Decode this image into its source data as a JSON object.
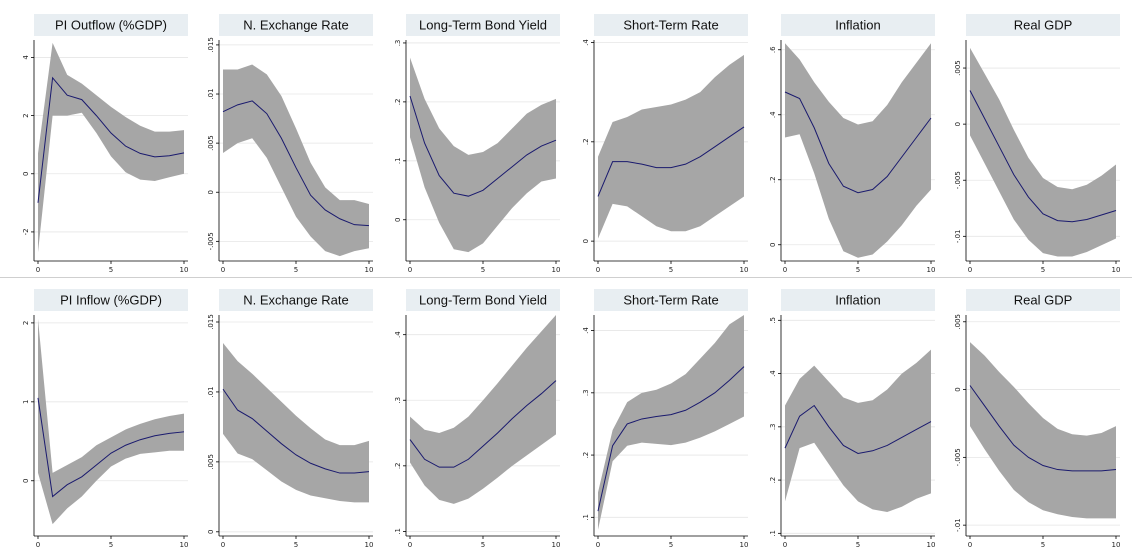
{
  "figure": {
    "colors": {
      "band": "#a6a6a6",
      "line": "#1a1a6e",
      "header": "#e8eef2",
      "grid": "#e6e6e6",
      "frame": "#000000"
    },
    "chart_data": [
      {
        "type": "area",
        "title": "PI Outflow (%GDP)",
        "xlabel": "",
        "ylabel": "",
        "x": [
          0,
          1,
          2,
          3,
          4,
          5,
          6,
          7,
          8,
          9,
          10
        ],
        "xticks": [
          0,
          5,
          10
        ],
        "yticks": [
          -2,
          0,
          2,
          4
        ],
        "yticklabels": [
          "-2",
          "0",
          "2",
          "4"
        ],
        "ylim": [
          -3,
          4.6
        ],
        "series": [
          {
            "values": [
              -1.0,
              3.3,
              2.7,
              2.55,
              2.0,
              1.4,
              0.95,
              0.7,
              0.58,
              0.62,
              0.72
            ]
          }
        ],
        "lower": [
          -2.7,
          2.0,
          2.0,
          2.1,
          1.4,
          0.6,
          0.05,
          -0.2,
          -0.25,
          -0.12,
          0.0
        ],
        "upper": [
          0.7,
          4.5,
          3.4,
          3.1,
          2.7,
          2.3,
          1.95,
          1.65,
          1.45,
          1.45,
          1.5
        ]
      },
      {
        "type": "area",
        "title": "N. Exchange Rate",
        "xlabel": "",
        "ylabel": "",
        "x": [
          0,
          1,
          2,
          3,
          4,
          5,
          6,
          7,
          8,
          9,
          10
        ],
        "xticks": [
          0,
          5,
          10
        ],
        "yticks": [
          -0.005,
          0,
          0.005,
          0.01,
          0.015
        ],
        "yticklabels": [
          "-.005",
          "0",
          ".005",
          ".01",
          ".015"
        ],
        "ylim": [
          -0.007,
          0.0155
        ],
        "series": [
          {
            "values": [
              0.0082,
              0.0089,
              0.0093,
              0.008,
              0.0055,
              0.0025,
              -0.0003,
              -0.0018,
              -0.0027,
              -0.0033,
              -0.0034
            ]
          }
        ],
        "lower": [
          0.004,
          0.005,
          0.0055,
          0.0035,
          0.0005,
          -0.0025,
          -0.0045,
          -0.006,
          -0.0065,
          -0.006,
          -0.0057
        ],
        "upper": [
          0.0125,
          0.0125,
          0.013,
          0.012,
          0.0098,
          0.0065,
          0.003,
          0.0005,
          -0.0008,
          -0.0008,
          -0.0012
        ]
      },
      {
        "type": "area",
        "title": "Long-Term Bond Yield",
        "xlabel": "",
        "ylabel": "",
        "x": [
          0,
          1,
          2,
          3,
          4,
          5,
          6,
          7,
          8,
          9,
          10
        ],
        "xticks": [
          0,
          5,
          10
        ],
        "yticks": [
          0,
          0.1,
          0.2,
          0.3
        ],
        "yticklabels": [
          "0",
          ".1",
          ".2",
          ".3"
        ],
        "ylim": [
          -0.07,
          0.305
        ],
        "series": [
          {
            "values": [
              0.21,
              0.13,
              0.075,
              0.045,
              0.04,
              0.05,
              0.07,
              0.09,
              0.11,
              0.125,
              0.135
            ]
          }
        ],
        "lower": [
          0.14,
          0.055,
          -0.005,
          -0.05,
          -0.055,
          -0.04,
          -0.01,
          0.02,
          0.045,
          0.065,
          0.07
        ],
        "upper": [
          0.275,
          0.205,
          0.155,
          0.125,
          0.11,
          0.115,
          0.13,
          0.155,
          0.18,
          0.195,
          0.205
        ]
      },
      {
        "type": "area",
        "title": "Short-Term Rate",
        "xlabel": "",
        "ylabel": "",
        "x": [
          0,
          1,
          2,
          3,
          4,
          5,
          6,
          7,
          8,
          9,
          10
        ],
        "xticks": [
          0,
          5,
          10
        ],
        "yticks": [
          0,
          0.2,
          0.4
        ],
        "yticklabels": [
          "0",
          ".2",
          ".4"
        ],
        "ylim": [
          -0.04,
          0.405
        ],
        "series": [
          {
            "values": [
              0.09,
              0.16,
              0.16,
              0.155,
              0.148,
              0.148,
              0.155,
              0.17,
              0.19,
              0.21,
              0.23
            ]
          }
        ],
        "lower": [
          0.005,
          0.075,
          0.07,
          0.05,
          0.03,
          0.02,
          0.02,
          0.03,
          0.05,
          0.07,
          0.09
        ],
        "upper": [
          0.17,
          0.24,
          0.25,
          0.265,
          0.27,
          0.275,
          0.285,
          0.3,
          0.33,
          0.355,
          0.375
        ]
      },
      {
        "type": "area",
        "title": "Inflation",
        "xlabel": "",
        "ylabel": "",
        "x": [
          0,
          1,
          2,
          3,
          4,
          5,
          6,
          7,
          8,
          9,
          10
        ],
        "xticks": [
          0,
          5,
          10
        ],
        "yticks": [
          0,
          0.2,
          0.4,
          0.6
        ],
        "yticklabels": [
          "0",
          ".2",
          ".4",
          ".6"
        ],
        "ylim": [
          -0.05,
          0.63
        ],
        "series": [
          {
            "values": [
              0.47,
              0.45,
              0.36,
              0.25,
              0.18,
              0.16,
              0.17,
              0.21,
              0.27,
              0.33,
              0.39
            ]
          }
        ],
        "lower": [
          0.33,
          0.34,
          0.22,
          0.08,
          -0.02,
          -0.04,
          -0.03,
          0.01,
          0.06,
          0.12,
          0.17
        ],
        "upper": [
          0.62,
          0.57,
          0.5,
          0.44,
          0.39,
          0.37,
          0.38,
          0.43,
          0.5,
          0.56,
          0.62
        ]
      },
      {
        "type": "area",
        "title": "Real GDP",
        "xlabel": "",
        "ylabel": "",
        "x": [
          0,
          1,
          2,
          3,
          4,
          5,
          6,
          7,
          8,
          9,
          10
        ],
        "xticks": [
          0,
          5,
          10
        ],
        "yticks": [
          -0.01,
          -0.005,
          0,
          0.005
        ],
        "yticklabels": [
          "-.01",
          "-.005",
          "0",
          ".005"
        ],
        "ylim": [
          -0.0122,
          0.0075
        ],
        "series": [
          {
            "values": [
              0.003,
              0.0005,
              -0.002,
              -0.0045,
              -0.0065,
              -0.008,
              -0.0086,
              -0.0087,
              -0.0085,
              -0.0081,
              -0.0077
            ]
          }
        ],
        "lower": [
          -0.001,
          -0.0035,
          -0.006,
          -0.0085,
          -0.0103,
          -0.0115,
          -0.0118,
          -0.0118,
          -0.0114,
          -0.0108,
          -0.0102
        ],
        "upper": [
          0.0068,
          0.0045,
          0.0022,
          -0.0005,
          -0.003,
          -0.0048,
          -0.0056,
          -0.0058,
          -0.0054,
          -0.0046,
          -0.0036
        ]
      },
      {
        "type": "area",
        "title": "PI Inflow (%GDP)",
        "xlabel": "",
        "ylabel": "",
        "x": [
          0,
          1,
          2,
          3,
          4,
          5,
          6,
          7,
          8,
          9,
          10
        ],
        "xticks": [
          0,
          5,
          10
        ],
        "yticks": [
          0,
          1,
          2
        ],
        "yticklabels": [
          "0",
          "1",
          "2"
        ],
        "ylim": [
          -0.7,
          2.1
        ],
        "series": [
          {
            "values": [
              1.05,
              -0.2,
              -0.05,
              0.05,
              0.2,
              0.35,
              0.45,
              0.52,
              0.57,
              0.6,
              0.62
            ]
          }
        ],
        "lower": [
          0.1,
          -0.55,
          -0.35,
          -0.2,
          0.0,
          0.18,
          0.28,
          0.34,
          0.36,
          0.38,
          0.38
        ],
        "upper": [
          2.05,
          0.1,
          0.2,
          0.3,
          0.45,
          0.55,
          0.65,
          0.72,
          0.78,
          0.82,
          0.85
        ]
      },
      {
        "type": "area",
        "title": "N. Exchange Rate",
        "xlabel": "",
        "ylabel": "",
        "x": [
          0,
          1,
          2,
          3,
          4,
          5,
          6,
          7,
          8,
          9,
          10
        ],
        "xticks": [
          0,
          5,
          10
        ],
        "yticks": [
          0,
          0.005,
          0.01,
          0.015
        ],
        "yticklabels": [
          "0",
          ".005",
          ".01",
          ".015"
        ],
        "ylim": [
          -0.0003,
          0.0155
        ],
        "series": [
          {
            "values": [
              0.0102,
              0.0087,
              0.0081,
              0.0072,
              0.0063,
              0.0055,
              0.0049,
              0.0045,
              0.0042,
              0.0042,
              0.0043
            ]
          }
        ],
        "lower": [
          0.007,
          0.0056,
          0.0052,
          0.0044,
          0.0036,
          0.003,
          0.0026,
          0.0024,
          0.0022,
          0.0021,
          0.0021
        ],
        "upper": [
          0.0135,
          0.0122,
          0.0113,
          0.0103,
          0.0093,
          0.0083,
          0.0074,
          0.0066,
          0.0062,
          0.0062,
          0.0065
        ]
      },
      {
        "type": "area",
        "title": "Long-Term Bond Yield",
        "xlabel": "",
        "ylabel": "",
        "x": [
          0,
          1,
          2,
          3,
          4,
          5,
          6,
          7,
          8,
          9,
          10
        ],
        "xticks": [
          0,
          5,
          10
        ],
        "yticks": [
          0.1,
          0.2,
          0.3,
          0.4
        ],
        "yticklabels": [
          ".1",
          ".2",
          ".3",
          ".4"
        ],
        "ylim": [
          0.093,
          0.43
        ],
        "series": [
          {
            "values": [
              0.24,
              0.21,
              0.198,
              0.198,
              0.21,
              0.23,
              0.25,
              0.272,
              0.292,
              0.31,
              0.33
            ]
          }
        ],
        "lower": [
          0.205,
          0.17,
          0.148,
          0.142,
          0.15,
          0.165,
          0.182,
          0.2,
          0.216,
          0.232,
          0.248
        ],
        "upper": [
          0.275,
          0.255,
          0.25,
          0.258,
          0.275,
          0.3,
          0.326,
          0.353,
          0.38,
          0.405,
          0.43
        ]
      },
      {
        "type": "area",
        "title": "Short-Term Rate",
        "xlabel": "",
        "ylabel": "",
        "x": [
          0,
          1,
          2,
          3,
          4,
          5,
          6,
          7,
          8,
          9,
          10
        ],
        "xticks": [
          0,
          5,
          10
        ],
        "yticks": [
          0.1,
          0.2,
          0.3,
          0.4
        ],
        "yticklabels": [
          ".1",
          ".2",
          ".3",
          ".4"
        ],
        "ylim": [
          0.07,
          0.425
        ],
        "series": [
          {
            "values": [
              0.11,
              0.215,
              0.25,
              0.258,
              0.262,
              0.265,
              0.272,
              0.285,
              0.3,
              0.32,
              0.342
            ]
          }
        ],
        "lower": [
          0.08,
          0.19,
          0.215,
          0.22,
          0.218,
          0.216,
          0.22,
          0.228,
          0.238,
          0.25,
          0.262
        ],
        "upper": [
          0.14,
          0.24,
          0.285,
          0.3,
          0.305,
          0.315,
          0.33,
          0.355,
          0.38,
          0.41,
          0.425
        ]
      },
      {
        "type": "area",
        "title": "Inflation",
        "xlabel": "",
        "ylabel": "",
        "x": [
          0,
          1,
          2,
          3,
          4,
          5,
          6,
          7,
          8,
          9,
          10
        ],
        "xticks": [
          0,
          5,
          10
        ],
        "yticks": [
          0.1,
          0.2,
          0.3,
          0.4,
          0.5
        ],
        "yticklabels": [
          ".1",
          ".2",
          ".3",
          ".4",
          ".5"
        ],
        "ylim": [
          0.095,
          0.51
        ],
        "series": [
          {
            "values": [
              0.26,
              0.32,
              0.34,
              0.3,
              0.265,
              0.25,
              0.255,
              0.265,
              0.28,
              0.295,
              0.31
            ]
          }
        ],
        "lower": [
          0.16,
          0.26,
          0.27,
          0.23,
          0.19,
          0.16,
          0.145,
          0.14,
          0.15,
          0.165,
          0.175
        ],
        "upper": [
          0.34,
          0.39,
          0.415,
          0.385,
          0.355,
          0.345,
          0.35,
          0.37,
          0.4,
          0.42,
          0.445
        ]
      },
      {
        "type": "area",
        "title": "Real GDP",
        "xlabel": "",
        "ylabel": "",
        "x": [
          0,
          1,
          2,
          3,
          4,
          5,
          6,
          7,
          8,
          9,
          10
        ],
        "xticks": [
          0,
          5,
          10
        ],
        "yticks": [
          -0.01,
          -0.005,
          0,
          0.005
        ],
        "yticklabels": [
          "-.01",
          "-.005",
          "0",
          ".005"
        ],
        "ylim": [
          -0.0108,
          0.0055
        ],
        "series": [
          {
            "values": [
              0.0003,
              -0.0012,
              -0.0027,
              -0.0041,
              -0.005,
              -0.0056,
              -0.0059,
              -0.006,
              -0.006,
              -0.006,
              -0.0059
            ]
          }
        ],
        "lower": [
          -0.0027,
          -0.0044,
          -0.006,
          -0.0074,
          -0.0083,
          -0.0089,
          -0.0092,
          -0.0094,
          -0.0095,
          -0.0095,
          -0.0095
        ],
        "upper": [
          0.0035,
          0.0025,
          0.0013,
          0.0002,
          -0.001,
          -0.0021,
          -0.0029,
          -0.0033,
          -0.0034,
          -0.0032,
          -0.0027
        ]
      }
    ]
  }
}
